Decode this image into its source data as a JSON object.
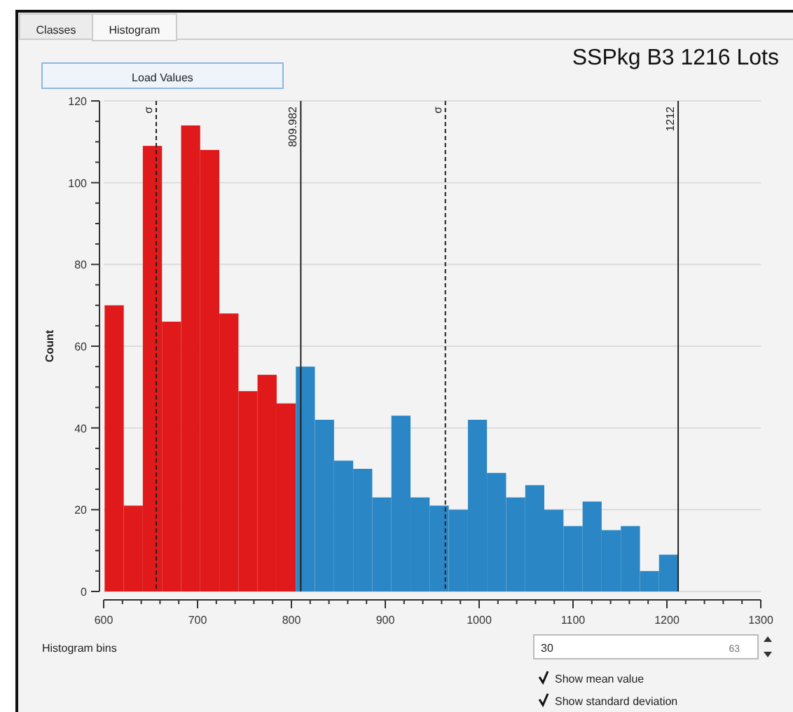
{
  "chart_data": {
    "type": "histogram",
    "title": "SSPkg B3 1216 Lots",
    "ylabel": "Count",
    "bins": [
      601.0,
      621.4,
      641.7,
      662.1,
      682.5,
      702.8,
      723.2,
      743.6,
      763.9,
      784.3,
      804.7,
      825.0,
      845.4,
      865.8,
      886.1,
      906.5,
      926.9,
      947.2,
      967.6,
      988.0,
      1008.3,
      1028.7,
      1049.1,
      1069.4,
      1089.8,
      1110.2,
      1130.5,
      1150.9,
      1171.3,
      1191.6,
      1212.0
    ],
    "values": [
      70,
      21,
      109,
      66,
      114,
      108,
      68,
      49,
      53,
      46,
      55,
      42,
      32,
      30,
      23,
      43,
      23,
      21,
      20,
      42,
      29,
      23,
      26,
      20,
      16,
      22,
      15,
      16,
      5,
      9
    ],
    "colors": [
      "#e01a1a",
      "#e01a1a",
      "#e01a1a",
      "#e01a1a",
      "#e01a1a",
      "#e01a1a",
      "#e01a1a",
      "#e01a1a",
      "#e01a1a",
      "#e01a1a",
      "#2b86c5",
      "#2b86c5",
      "#2b86c5",
      "#2b86c5",
      "#2b86c5",
      "#2b86c5",
      "#2b86c5",
      "#2b86c5",
      "#2b86c5",
      "#2b86c5",
      "#2b86c5",
      "#2b86c5",
      "#2b86c5",
      "#2b86c5",
      "#2b86c5",
      "#2b86c5",
      "#2b86c5",
      "#2b86c5",
      "#2b86c5",
      "#2b86c5"
    ],
    "xlim": [
      600,
      1300
    ],
    "xticks": [
      600,
      700,
      800,
      900,
      1000,
      1100,
      1200,
      1300
    ],
    "ylim": [
      0,
      120
    ],
    "yticks": [
      0,
      20,
      40,
      60,
      80,
      100,
      120
    ],
    "grid": "y",
    "ref_lines": [
      {
        "axis": "x",
        "value": 656,
        "label": "σ",
        "line_style": "dashed"
      },
      {
        "axis": "x",
        "value": 809.982,
        "label": "809.982",
        "line_style": "solid"
      },
      {
        "axis": "x",
        "value": 964,
        "label": "σ",
        "line_style": "dashed"
      },
      {
        "axis": "x",
        "value": 1212,
        "label": "1212",
        "line_style": "solid"
      }
    ],
    "annotations": [
      "Classes",
      "Histogram",
      "Load Values",
      "Histogram bins",
      "30",
      "63",
      "Show mean value",
      "Show standard deviation"
    ]
  }
}
